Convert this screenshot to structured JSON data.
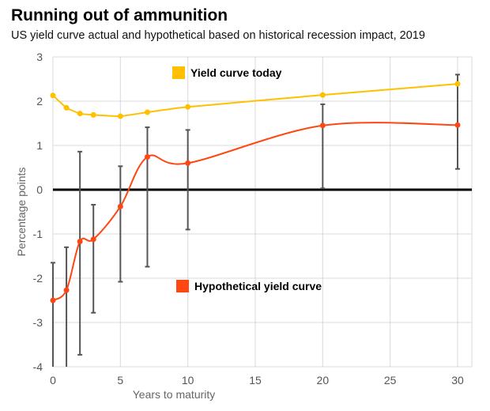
{
  "chart_data": {
    "type": "line",
    "title": "Running out of ammunition",
    "subtitle": "US yield curve actual and hypothetical based on historical recession impact, 2019",
    "xlabel": "Years to maturity",
    "ylabel": "Percentage points",
    "xlim": [
      0,
      31
    ],
    "ylim": [
      -4,
      3
    ],
    "xticks": [
      0,
      5,
      10,
      15,
      20,
      25,
      30
    ],
    "yticks": [
      -4,
      -3,
      -2,
      -1,
      0,
      1,
      2,
      3
    ],
    "grid": true,
    "legend_placement": "inline",
    "x": [
      0,
      1,
      2,
      3,
      5,
      7,
      10,
      20,
      30
    ],
    "series": [
      {
        "name": "Yield curve today",
        "color": "#FFC000",
        "values": [
          2.13,
          1.85,
          1.72,
          1.69,
          1.66,
          1.75,
          1.87,
          2.14,
          2.39
        ]
      },
      {
        "name": "Hypothetical yield curve",
        "color": "#FF4713",
        "values": [
          -2.5,
          -2.27,
          -1.17,
          -1.12,
          -0.38,
          0.74,
          0.6,
          1.45,
          1.46
        ],
        "error_low": [
          -4.0,
          -4.0,
          -3.73,
          -2.78,
          -2.08,
          -1.74,
          -0.9,
          0.03,
          0.47
        ],
        "error_high": [
          -1.65,
          -1.3,
          0.86,
          -0.34,
          0.53,
          1.41,
          1.35,
          1.93,
          2.6
        ]
      }
    ]
  }
}
